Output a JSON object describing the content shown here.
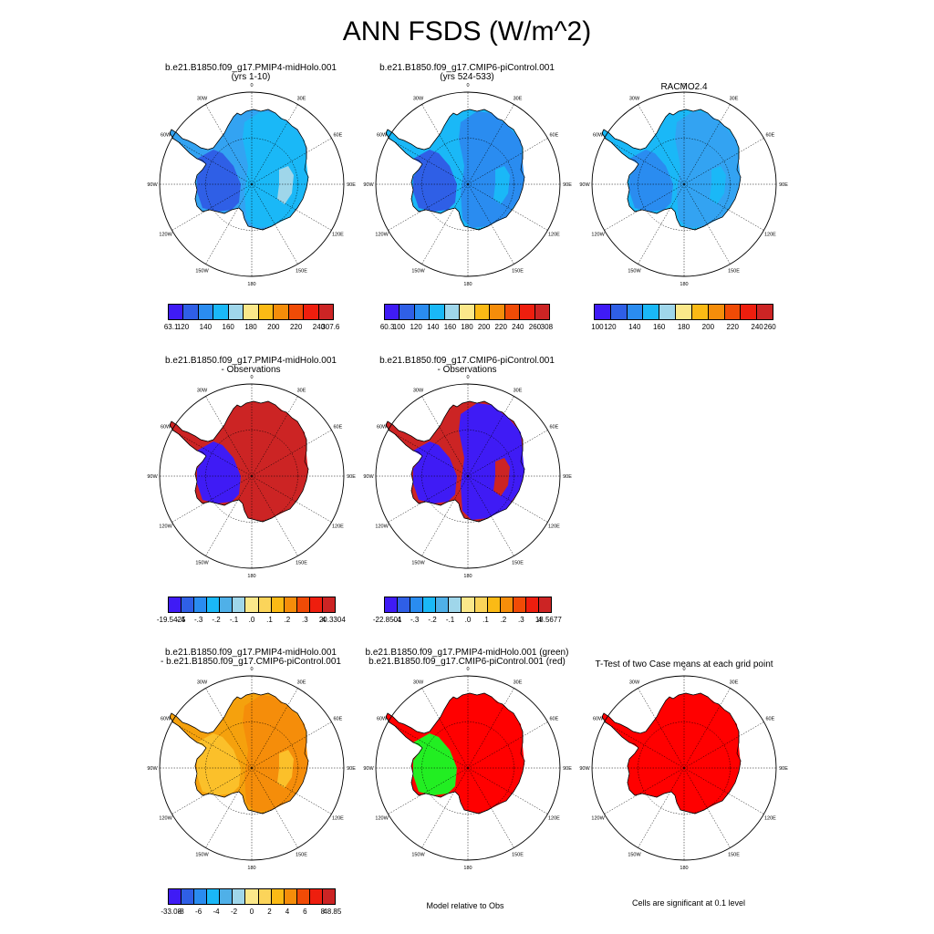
{
  "title": "ANN FSDS (W/m^2)",
  "colors": {
    "abs": [
      "#3f1bf5",
      "#2f5fe6",
      "#2a8cf0",
      "#1ab8f7",
      "#9fd6ea",
      "#fbe88a",
      "#fbba15",
      "#f58d0a",
      "#f04b06",
      "#ee1e0e",
      "#cc2424"
    ],
    "diff": [
      "#3f1bf5",
      "#2f5fe6",
      "#2a8cf0",
      "#1ab8f7",
      "#4fb0e8",
      "#9fd6ea",
      "#fbe88a",
      "#fbd45a",
      "#fbba15",
      "#f58d0a",
      "#f04b06",
      "#ee1e0e",
      "#cc2424"
    ],
    "green": "#22ee22",
    "red": "#ff0000"
  },
  "lon_labels": [
    "0",
    "30E",
    "60E",
    "90E",
    "120E",
    "150E",
    "180",
    "150W",
    "120W",
    "90W",
    "60W",
    "30W"
  ],
  "panels": [
    {
      "id": "p1",
      "title1": "b.e21.B1850.f09_g17.PMIP4-midHolo.001",
      "title2": "(yrs 1-10)",
      "base": "#33a3f2",
      "region2": "#1ab8f7",
      "region3": "#9fd6ea",
      "region1": "#2f5fe6"
    },
    {
      "id": "p2",
      "title1": "b.e21.B1850.f09_g17.CMIP6-piControl.001",
      "title2": "(yrs 524-533)",
      "base": "#1ab8f7",
      "region1": "#2f5fe6",
      "region2": "#2a8cf0",
      "region3": "#1ab8f7"
    },
    {
      "id": "p3",
      "title1": "RACMO2.4",
      "title2": "",
      "base": "#1ab8f7",
      "region1": "#2a8cf0",
      "region2": "#33a3f2",
      "region3": "#1ab8f7"
    },
    {
      "id": "p4",
      "title1": "b.e21.B1850.f09_g17.PMIP4-midHolo.001",
      "title2": "- Observations",
      "base": "#cc2424",
      "region1": "#3f1bf5",
      "region2": "#cc2424",
      "region3": "#cc2424"
    },
    {
      "id": "p5",
      "title1": "b.e21.B1850.f09_g17.CMIP6-piControl.001",
      "title2": "- Observations",
      "base": "#cc2424",
      "region1": "#3f1bf5",
      "region2": "#3f1bf5",
      "region3": "#cc2424"
    },
    {
      "id": "p7",
      "title1": "b.e21.B1850.f09_g17.PMIP4-midHolo.001",
      "title2": "- b.e21.B1850.f09_g17.CMIP6-piControl.001",
      "base": "#f5a10d",
      "region1": "#fbc02a",
      "region2": "#f58d0a",
      "region3": "#fbc02a"
    },
    {
      "id": "p8",
      "title1": "b.e21.B1850.f09_g17.PMIP4-midHolo.001 (green)",
      "title2": "b.e21.B1850.f09_g17.CMIP6-piControl.001 (red)",
      "base": "#ff0000",
      "region1": "#22ee22",
      "region2": "#ff0000",
      "region3": "#ff0000"
    },
    {
      "id": "p9",
      "title1": "T-Test of two Case means at each grid point",
      "title2": "",
      "base": "#ff0000",
      "region1": "#ff0000",
      "region2": "#ff0000",
      "region3": "#ff0000"
    }
  ],
  "colorbars": [
    {
      "id": "cb1",
      "labels": [
        "63.1",
        "120",
        "140",
        "160",
        "180",
        "200",
        "220",
        "240",
        "307.6"
      ]
    },
    {
      "id": "cb2",
      "labels": [
        "60.3",
        "100",
        "120",
        "140",
        "160",
        "180",
        "200",
        "220",
        "240",
        "260",
        "308"
      ]
    },
    {
      "id": "cb3",
      "labels": [
        "100",
        "120",
        "140",
        "160",
        "180",
        "200",
        "220",
        "240",
        "260"
      ]
    },
    {
      "id": "cb4",
      "labels": [
        "-19.5425",
        "-.4",
        "-.3",
        "-.2",
        "-.1",
        ".0",
        ".1",
        ".2",
        ".3",
        ".4",
        "20.3304"
      ]
    },
    {
      "id": "cb5",
      "labels": [
        "-22.8501",
        "-.4",
        "-.3",
        "-.2",
        "-.1",
        ".0",
        ".1",
        ".2",
        ".3",
        ".4",
        "18.5677"
      ]
    },
    {
      "id": "cb7",
      "labels": [
        "-33.08",
        "-8",
        "-6",
        "-4",
        "-2",
        "0",
        "2",
        "4",
        "6",
        "8",
        "48.85"
      ]
    }
  ],
  "footers": {
    "model_obs": "Model relative to Obs",
    "significance": "Cells are significant at 0.1 level"
  }
}
